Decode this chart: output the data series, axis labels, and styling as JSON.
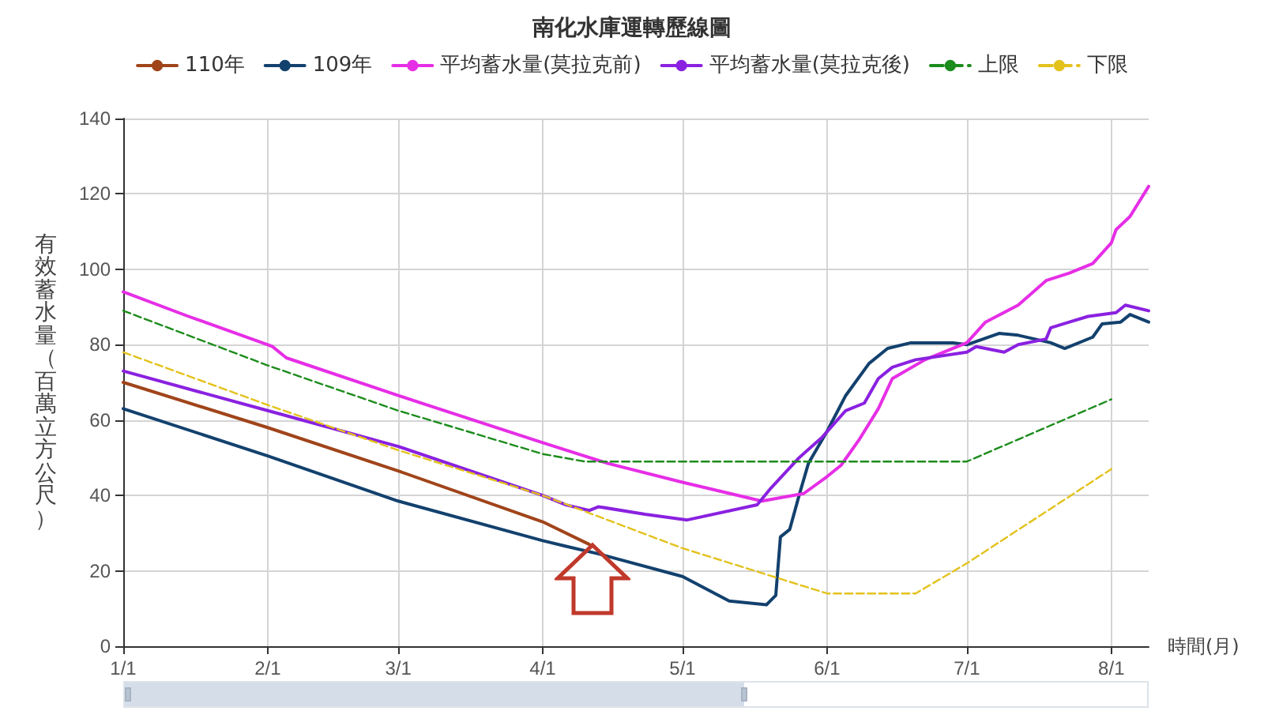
{
  "chart_data": {
    "type": "line",
    "title": "南化水庫運轉歷線圖",
    "xlabel": "時間(月)",
    "ylabel": "有效蓄水量（百萬立方公尺）",
    "xlim": [
      "--01-01",
      "--08-09"
    ],
    "xticks": [
      {
        "value": "--01-01",
        "label": "1/1"
      },
      {
        "value": "--02-01",
        "label": "2/1"
      },
      {
        "value": "--03-01",
        "label": "3/1"
      },
      {
        "value": "--04-01",
        "label": "4/1"
      },
      {
        "value": "--05-01",
        "label": "5/1"
      },
      {
        "value": "--06-01",
        "label": "6/1"
      },
      {
        "value": "--07-01",
        "label": "7/1"
      },
      {
        "value": "--08-01",
        "label": "8/1"
      }
    ],
    "ylim": [
      0,
      140
    ],
    "yticks": [
      0,
      20,
      40,
      60,
      80,
      100,
      120,
      140
    ],
    "grid": true,
    "legend": "top",
    "series": [
      {
        "name": "110年",
        "color": "#a0441a",
        "x": [
          "--01-01",
          "--02-01",
          "--03-01",
          "--04-01",
          "--04-11"
        ],
        "values": [
          70,
          58,
          46.5,
          33,
          27
        ]
      },
      {
        "name": "109年",
        "color": "#13416e",
        "x": [
          "--01-01",
          "--02-01",
          "--03-01",
          "--04-01",
          "--04-06",
          "--04-13",
          "--05-01",
          "--05-11",
          "--05-19",
          "--05-21",
          "--05-22",
          "--05-24",
          "--05-26",
          "--05-28",
          "--06-01",
          "--06-05",
          "--06-10",
          "--06-14",
          "--06-19",
          "--06-28",
          "--07-01",
          "--07-08",
          "--07-12",
          "--07-19",
          "--07-22",
          "--07-28",
          "--07-30",
          "--08-03",
          "--08-05",
          "--08-09"
        ],
        "values": [
          63,
          50.5,
          38.5,
          28,
          26.5,
          24.5,
          18.5,
          12,
          11,
          13.5,
          29,
          31,
          40,
          48.5,
          57,
          66.5,
          75,
          79,
          80.5,
          80.5,
          80,
          83,
          82.5,
          80.5,
          79,
          82,
          85.5,
          86,
          88,
          86
        ]
      },
      {
        "name": "平均蓄水量(莫拉克前)",
        "color": "#e62ee6",
        "x": [
          "--01-01",
          "--01-15",
          "--02-01",
          "--02-02",
          "--02-05",
          "--03-01",
          "--04-01",
          "--04-15",
          "--05-01",
          "--05-18",
          "--05-27",
          "--06-01",
          "--06-04",
          "--06-08",
          "--06-12",
          "--06-15",
          "--06-22",
          "--07-01",
          "--07-05",
          "--07-12",
          "--07-18",
          "--07-23",
          "--07-28",
          "--08-01",
          "--08-02",
          "--08-05",
          "--08-09"
        ],
        "values": [
          94,
          87.5,
          80,
          79.5,
          76.5,
          66.5,
          54,
          48.5,
          43.5,
          38.5,
          40.5,
          45,
          48,
          55,
          63,
          71,
          76,
          80.5,
          86,
          90.5,
          97,
          99,
          101.5,
          107,
          110.5,
          114,
          122
        ]
      },
      {
        "name": "平均蓄水量(莫拉克後)",
        "color": "#8a21e0",
        "x": [
          "--01-01",
          "--02-01",
          "--03-01",
          "--04-01",
          "--04-06",
          "--04-11",
          "--04-13",
          "--04-23",
          "--05-02",
          "--05-17",
          "--05-20",
          "--05-26",
          "--05-31",
          "--06-05",
          "--06-09",
          "--06-12",
          "--06-15",
          "--06-20",
          "--07-01",
          "--07-03",
          "--07-09",
          "--07-12",
          "--07-18",
          "--07-19",
          "--07-23",
          "--07-27",
          "--08-02",
          "--08-04",
          "--08-09"
        ],
        "values": [
          73,
          62.5,
          53,
          40,
          37.5,
          36,
          37,
          35,
          33.5,
          37.5,
          42,
          50,
          55.5,
          62.5,
          64.5,
          71,
          74,
          76,
          78,
          79.5,
          78,
          80,
          81.5,
          84.5,
          86,
          87.5,
          88.5,
          90.5,
          89
        ]
      },
      {
        "name": "上限",
        "color": "#1c8c1c",
        "line_style": "dashed",
        "x": [
          "--01-01",
          "--02-01",
          "--03-01",
          "--04-01",
          "--04-10",
          "--07-01",
          "--08-01"
        ],
        "values": [
          89,
          74.5,
          62.5,
          51,
          49,
          49,
          65.5
        ]
      },
      {
        "name": "下限",
        "color": "#e3c21c",
        "line_style": "dashed",
        "x": [
          "--01-01",
          "--02-01",
          "--03-01",
          "--04-01",
          "--05-01",
          "--06-01",
          "--06-20",
          "--07-01",
          "--08-01"
        ],
        "values": [
          78,
          64,
          52,
          40,
          26,
          14,
          14,
          22,
          47
        ]
      }
    ]
  }
}
